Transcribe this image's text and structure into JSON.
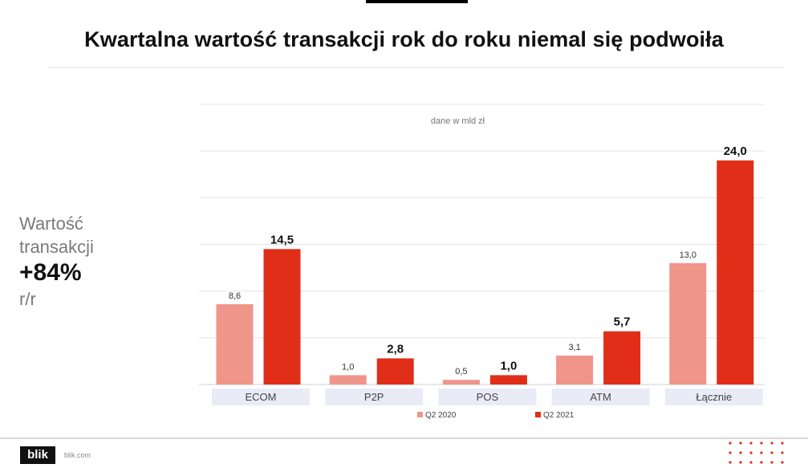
{
  "title": "Kwartalna wartość transakcji rok do roku niemal się podwoiła",
  "kpi": {
    "line1": "Wartość",
    "line2": "transakcji",
    "value": "+84%",
    "suffix": "r/r"
  },
  "footer": {
    "logo": "blik",
    "site": "blik.com"
  },
  "colors": {
    "q2_2020": "#f0958a",
    "q2_2021": "#e02e19",
    "category_bg": "#e9ebf7",
    "dots": "#e02e19"
  },
  "chart_data": {
    "type": "bar",
    "subtitle": "dane w mld zł",
    "categories": [
      "ECOM",
      "P2P",
      "POS",
      "ATM",
      "Łącznie"
    ],
    "series": [
      {
        "name": "Q2 2020",
        "values": [
          8.6,
          1.0,
          0.5,
          3.1,
          13.0
        ],
        "labels": [
          "8,6",
          "1,0",
          "0,5",
          "3,1",
          "13,0"
        ]
      },
      {
        "name": "Q2 2021",
        "values": [
          14.5,
          2.8,
          1.0,
          5.7,
          24.0
        ],
        "labels": [
          "14,5",
          "2,8",
          "1,0",
          "5,7",
          "24,0"
        ]
      }
    ],
    "ylim": [
      0,
      30
    ],
    "grid": true,
    "legend": "bottom"
  }
}
